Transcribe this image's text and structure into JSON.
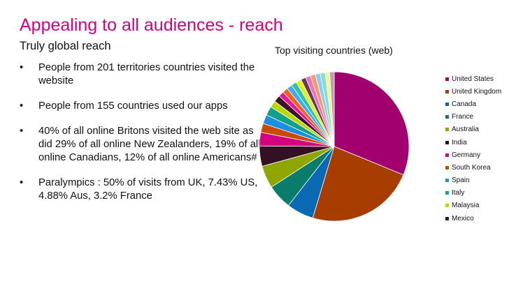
{
  "slide": {
    "title": "Appealing to all audiences - reach",
    "subtitle": "Truly global reach",
    "bullet_glyph": "•",
    "bullets": [
      "People from 201 territories countries visited the website",
      "People from 155 countries used our apps",
      "40% of all online Britons visited the web site as did 29% of all online New Zealanders, 19% of all online Canadians, 12% of all online Americans#",
      "Paralympics : 50% of visits from UK, 7.43% US, 4.88% Aus, 3.2% France"
    ]
  },
  "chart_data": {
    "type": "pie",
    "title": "Top visiting countries (web)",
    "legend_position": "right",
    "slices": [
      {
        "label": "United States",
        "value": 32,
        "color": "#a3006f"
      },
      {
        "label": "United Kingdom",
        "value": 24,
        "color": "#a73d00"
      },
      {
        "label": "Canada",
        "value": 6,
        "color": "#0a69b3"
      },
      {
        "label": "France",
        "value": 5.5,
        "color": "#0a7c6b"
      },
      {
        "label": "Australia",
        "value": 5,
        "color": "#8fa600"
      },
      {
        "label": "India",
        "value": 4.5,
        "color": "#341022"
      },
      {
        "label": "Germany",
        "value": 3,
        "color": "#d4007f"
      },
      {
        "label": "South Korea",
        "value": 2,
        "color": "#cc4a00"
      },
      {
        "label": "Spain",
        "value": 2,
        "color": "#1d8fe0"
      },
      {
        "label": "Italy",
        "value": 2,
        "color": "#12a08c"
      },
      {
        "label": "Malaysia",
        "value": 1.5,
        "color": "#b9d700"
      },
      {
        "label": "Mexico",
        "value": 1.5,
        "color": "#3c1428"
      },
      {
        "label": "",
        "value": 1.2,
        "color": "#e9169c"
      },
      {
        "label": "",
        "value": 1.2,
        "color": "#ef6413"
      },
      {
        "label": "",
        "value": 1.2,
        "color": "#44a7f2"
      },
      {
        "label": "",
        "value": 1.2,
        "color": "#2cc1a8"
      },
      {
        "label": "",
        "value": 1.2,
        "color": "#dcf022"
      },
      {
        "label": "",
        "value": 1.1,
        "color": "#6b3a52"
      },
      {
        "label": "",
        "value": 1.1,
        "color": "#f072bf"
      },
      {
        "label": "",
        "value": 1.1,
        "color": "#f29a6a"
      },
      {
        "label": "",
        "value": 1.1,
        "color": "#8fcaf7"
      },
      {
        "label": "",
        "value": 1.1,
        "color": "#88ddd0"
      },
      {
        "label": "",
        "value": 1.0,
        "color": "#eef59a"
      },
      {
        "label": "",
        "value": 1.0,
        "color": "#b9a0ac"
      }
    ]
  }
}
